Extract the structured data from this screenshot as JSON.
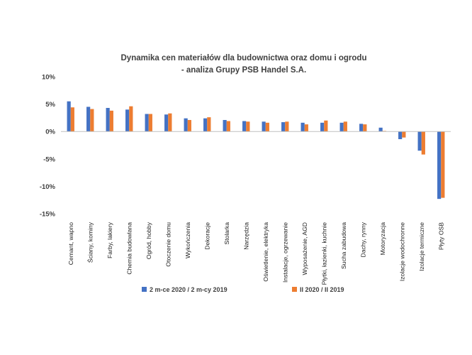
{
  "chart_data": {
    "type": "bar",
    "title": [
      "Dynamika cen materiałów dla budownictwa oraz domu i ogrodu",
      "- analiza Grupy PSB Handel S.A."
    ],
    "xlabel": "",
    "ylabel": "",
    "ylim": [
      -15,
      10
    ],
    "yticks": [
      10,
      5,
      0,
      -5,
      -10,
      -15
    ],
    "ytick_labels": [
      "10%",
      "5%",
      "0%",
      "-5%",
      "-10%",
      "-15%"
    ],
    "grid": false,
    "legend_position": "bottom",
    "categories": [
      "Cemant, wapno",
      "Ściany, kominy",
      "Farby, lakiery",
      "Chemia budowlana",
      "Ogród, hobby",
      "Otoczenie domu",
      "Wykończenia",
      "Dekoracje",
      "Stolarka",
      "Narzędzia",
      "Oświetlenie, elektryka",
      "Instalacje, ogrzewanie",
      "Wyposażenie, AGD",
      "Płytki, łazienki, kuchnie",
      "Sucha zabudowa",
      "Dachy, rynny",
      "Motoryzacja",
      "Izolacje wodochronne",
      "Izolacje termiczne",
      "Płyty OSB"
    ],
    "series": [
      {
        "name": "2 m-ce 2020 / 2 m-cy 2019",
        "color": "#4472C4",
        "values": [
          5.5,
          4.5,
          4.3,
          4.0,
          3.2,
          3.1,
          2.4,
          2.4,
          2.1,
          1.9,
          1.8,
          1.7,
          1.6,
          1.6,
          1.6,
          1.4,
          0.7,
          -1.4,
          -3.5,
          -12.3
        ]
      },
      {
        "name": "II 2020 / II 2019",
        "color": "#ED7D31",
        "values": [
          4.4,
          4.1,
          3.8,
          4.6,
          3.2,
          3.3,
          2.1,
          2.6,
          1.9,
          1.8,
          1.6,
          1.8,
          1.3,
          2.0,
          1.8,
          1.3,
          0.1,
          -1.1,
          -4.2,
          -12.1
        ]
      }
    ]
  }
}
